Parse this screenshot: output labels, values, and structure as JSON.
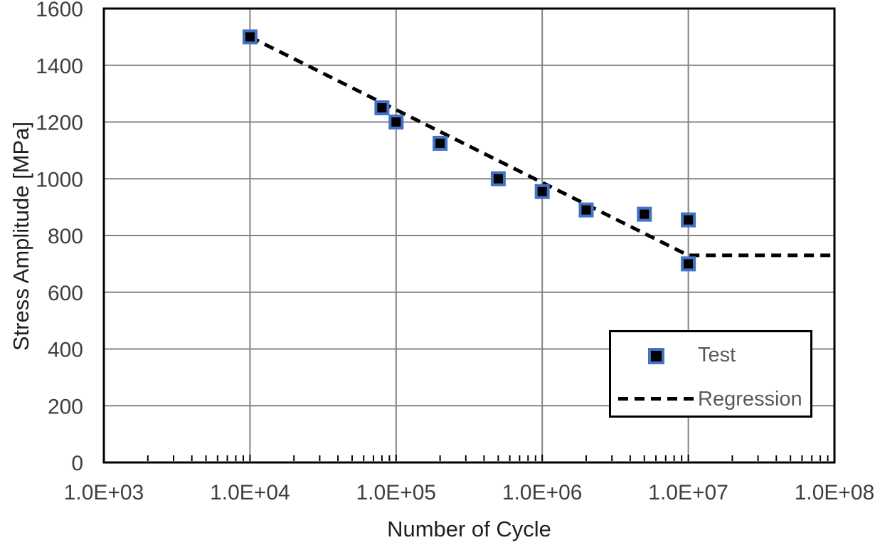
{
  "chart_data": {
    "type": "scatter",
    "title": "",
    "xlabel": "Number of Cycle",
    "ylabel": "Stress Amplitude [MPa]",
    "x_scale": "log",
    "x_range": [
      1000,
      100000000
    ],
    "y_range": [
      0,
      1600
    ],
    "grid": true,
    "x_ticks": [
      {
        "value": 1000,
        "label": "1.0E+03"
      },
      {
        "value": 10000,
        "label": "1.0E+04"
      },
      {
        "value": 100000,
        "label": "1.0E+05"
      },
      {
        "value": 1000000,
        "label": "1.0E+06"
      },
      {
        "value": 10000000,
        "label": "1.0E+07"
      },
      {
        "value": 100000000,
        "label": "1.0E+08"
      }
    ],
    "y_ticks": [
      {
        "value": 0,
        "label": "0"
      },
      {
        "value": 200,
        "label": "200"
      },
      {
        "value": 400,
        "label": "400"
      },
      {
        "value": 600,
        "label": "600"
      },
      {
        "value": 800,
        "label": "800"
      },
      {
        "value": 1000,
        "label": "1000"
      },
      {
        "value": 1200,
        "label": "1200"
      },
      {
        "value": 1400,
        "label": "1400"
      },
      {
        "value": 1600,
        "label": "1600"
      }
    ],
    "series": [
      {
        "name": "Test",
        "type": "scatter",
        "marker": "square",
        "marker_fill": "#000000",
        "marker_border": "#4472C4",
        "points": [
          [
            10000,
            1500
          ],
          [
            80000,
            1250
          ],
          [
            100000,
            1200
          ],
          [
            200000,
            1125
          ],
          [
            500000,
            1000
          ],
          [
            1000000,
            955
          ],
          [
            2000000,
            890
          ],
          [
            5000000,
            875
          ],
          [
            10000000,
            855
          ],
          [
            10000000,
            700
          ]
        ]
      },
      {
        "name": "Regression",
        "type": "line",
        "style": "dashed",
        "color": "#000000",
        "points": [
          [
            10000,
            1500
          ],
          [
            10000000,
            730
          ],
          [
            100000000,
            730
          ]
        ]
      }
    ],
    "legend": {
      "position": "inside-bottom-right",
      "items": [
        "Test",
        "Regression"
      ]
    },
    "colors": {
      "background": "#ffffff",
      "plot_border": "#000000",
      "gridline": "#848484",
      "minor_tick": "#000000",
      "tick_label": "#3f3f3f",
      "axis_title": "#1f1f1f",
      "legend_text": "#595959",
      "marker_fill": "#000000",
      "marker_border": "#4472C4",
      "regression_line": "#000000"
    }
  }
}
